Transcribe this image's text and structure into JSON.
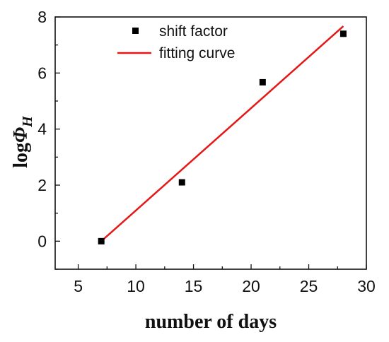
{
  "chart_data": {
    "type": "scatter",
    "title": "",
    "xlabel": "number of days",
    "ylabel": {
      "base": "log",
      "symbol": "Φ",
      "subscript": "H"
    },
    "xlim": [
      3,
      30
    ],
    "ylim": [
      -1,
      8
    ],
    "x_ticks": [
      5,
      10,
      15,
      20,
      25,
      30
    ],
    "y_ticks": [
      0,
      2,
      4,
      6,
      8
    ],
    "grid": false,
    "legend_position": "top-center",
    "series": [
      {
        "name": "shift factor",
        "kind": "scatter",
        "marker": "square",
        "color": "#000000",
        "points": [
          {
            "x": 7,
            "y": 0.0
          },
          {
            "x": 14,
            "y": 2.1
          },
          {
            "x": 21,
            "y": 5.67
          },
          {
            "x": 28,
            "y": 7.4
          }
        ]
      },
      {
        "name": "fitting curve",
        "kind": "line",
        "color": "#e61717",
        "points": [
          {
            "x": 7,
            "y": 0.0
          },
          {
            "x": 28,
            "y": 7.67
          }
        ]
      }
    ]
  }
}
